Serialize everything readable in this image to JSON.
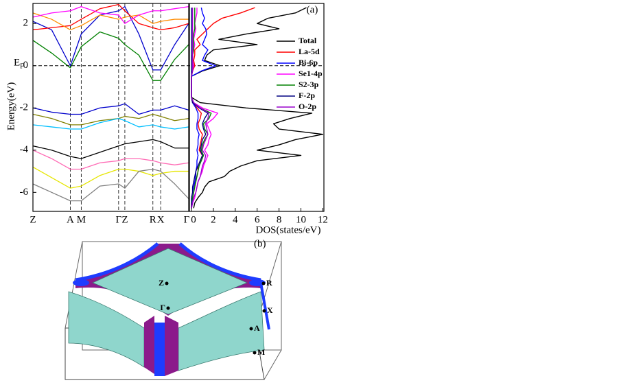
{
  "chart_data": [
    {
      "type": "line",
      "ylabel": "Energy(eV)",
      "ylim": [
        -6.9,
        2.95
      ],
      "yticks": [
        -6,
        -4,
        -2,
        0,
        2
      ],
      "fermi_label": {
        "main": "E",
        "sub": "F"
      },
      "hline": 0,
      "x": [
        0,
        0.12,
        0.24,
        0.31,
        0.43,
        0.55,
        0.59,
        0.68,
        0.77,
        0.82,
        0.91,
        1.0
      ],
      "xlim": [
        0,
        1
      ],
      "xticks": [
        {
          "value": 0,
          "label": "Z"
        },
        {
          "value": 0.24,
          "label": "A"
        },
        {
          "value": 0.31,
          "label": "M"
        },
        {
          "value": 0.55,
          "label": "Γ"
        },
        {
          "value": 0.59,
          "label": "Z"
        },
        {
          "value": 0.77,
          "label": "R"
        },
        {
          "value": 0.82,
          "label": "X"
        },
        {
          "value": 1.0,
          "label": "Γ"
        }
      ],
      "series": [
        {
          "color": "#008000",
          "values": [
            1.2,
            0.6,
            -0.1,
            0.9,
            1.6,
            1.3,
            1.0,
            0.5,
            -0.7,
            -0.7,
            0.3,
            1.0
          ]
        },
        {
          "color": "#0000cc",
          "values": [
            2.1,
            1.7,
            0.0,
            1.5,
            2.4,
            2.6,
            2.8,
            1.5,
            -0.2,
            -0.2,
            1.0,
            2.0
          ]
        },
        {
          "color": "#ff0000",
          "values": [
            1.7,
            1.8,
            1.9,
            2.2,
            2.7,
            2.9,
            2.6,
            2.0,
            1.8,
            1.7,
            1.8,
            2.0
          ]
        },
        {
          "color": "#ff8c00",
          "values": [
            2.5,
            2.2,
            1.7,
            1.9,
            2.4,
            2.2,
            2.3,
            2.4,
            2.0,
            2.1,
            2.2,
            2.2
          ]
        },
        {
          "color": "#ff00ff",
          "values": [
            2.3,
            2.5,
            2.6,
            2.8,
            2.5,
            2.4,
            2.0,
            2.4,
            2.6,
            2.6,
            2.7,
            2.8
          ]
        },
        {
          "color": "#0000cc",
          "values": [
            -2.0,
            -2.2,
            -2.3,
            -2.3,
            -2.0,
            -1.9,
            -1.8,
            -2.3,
            -2.1,
            -2.1,
            -1.9,
            -2.1
          ]
        },
        {
          "color": "#808000",
          "values": [
            -2.3,
            -2.5,
            -2.8,
            -2.8,
            -2.6,
            -2.5,
            -2.4,
            -2.5,
            -2.3,
            -2.4,
            -2.6,
            -2.5
          ]
        },
        {
          "color": "#00bfff",
          "values": [
            -2.8,
            -2.9,
            -3.0,
            -3.0,
            -2.7,
            -2.5,
            -2.6,
            -2.9,
            -2.8,
            -2.9,
            -3.0,
            -2.9
          ]
        },
        {
          "color": "#000000",
          "values": [
            -3.8,
            -4.0,
            -4.3,
            -4.4,
            -4.1,
            -3.8,
            -3.7,
            -3.6,
            -3.5,
            -3.6,
            -3.9,
            -3.9
          ]
        },
        {
          "color": "#ff69b4",
          "values": [
            -4.0,
            -4.4,
            -4.9,
            -4.9,
            -4.6,
            -4.5,
            -4.4,
            -4.4,
            -4.5,
            -4.6,
            -4.7,
            -4.6
          ]
        },
        {
          "color": "#e6e600",
          "values": [
            -4.8,
            -5.3,
            -5.8,
            -5.7,
            -5.2,
            -4.9,
            -4.9,
            -5.0,
            -5.2,
            -5.1,
            -5.0,
            -5.0
          ]
        },
        {
          "color": "#808080",
          "values": [
            -5.6,
            -6.0,
            -6.4,
            -6.4,
            -5.7,
            -5.6,
            -5.8,
            -5.0,
            -4.9,
            -5.0,
            -5.6,
            -6.3
          ]
        }
      ]
    },
    {
      "type": "line",
      "orientation": "horizontal",
      "panel_label": "(a)",
      "xlabel": "DOS(states/eV)",
      "xlim": [
        0,
        12.1
      ],
      "xticks": [
        0,
        2,
        4,
        6,
        8,
        10,
        12
      ],
      "ylim": [
        -6.9,
        2.95
      ],
      "legend": "upper right",
      "y": [
        -6.75,
        -6.5,
        -6.25,
        -6.0,
        -5.75,
        -5.5,
        -5.25,
        -5.0,
        -4.75,
        -4.5,
        -4.25,
        -4.0,
        -3.75,
        -3.5,
        -3.25,
        -3.0,
        -2.75,
        -2.5,
        -2.25,
        -2.0,
        -1.75,
        -1.5,
        -1.25,
        -1.0,
        -0.75,
        -0.5,
        -0.25,
        0,
        0.25,
        0.5,
        0.75,
        1.0,
        1.25,
        1.5,
        1.75,
        2.0,
        2.25,
        2.5,
        2.75
      ],
      "series": [
        {
          "name": "Total",
          "color": "#000000",
          "values": [
            0.2,
            0.3,
            0.6,
            1.0,
            1.2,
            1.6,
            3.0,
            3.5,
            4.5,
            6.0,
            10.0,
            6.0,
            8.0,
            9.5,
            12.0,
            8.0,
            7.5,
            9.0,
            11.0,
            5.0,
            0.8,
            0,
            0,
            0,
            0,
            0,
            1.0,
            2.6,
            1.2,
            1.4,
            2.0,
            6.0,
            2.5,
            5.0,
            8.0,
            6.0,
            7.0,
            9.5,
            10.5
          ]
        },
        {
          "name": "La-5d",
          "color": "#ff0000",
          "values": [
            0,
            0,
            0.1,
            0.2,
            0.3,
            0.3,
            0.5,
            0.6,
            0.6,
            0.8,
            1.0,
            0.7,
            0.8,
            0.9,
            1.0,
            0.7,
            0.6,
            0.8,
            0.9,
            0.5,
            0.1,
            0,
            0,
            0,
            0,
            0,
            0.1,
            0.3,
            0.2,
            0.3,
            0.3,
            0.8,
            0.5,
            1.0,
            1.5,
            2.0,
            2.8,
            4.5,
            5.8
          ]
        },
        {
          "name": "Bi-6p",
          "color": "#0000ff",
          "values": [
            0,
            0.1,
            0.1,
            0.2,
            0.2,
            0.3,
            0.4,
            0.4,
            0.5,
            0.5,
            0.6,
            0.5,
            0.6,
            0.6,
            0.7,
            0.5,
            0.5,
            0.6,
            0.6,
            0.4,
            0.1,
            0,
            0,
            0,
            0,
            0,
            0.9,
            2.2,
            1.0,
            1.2,
            1.5,
            1.0,
            1.2,
            1.4,
            1.3,
            1.0,
            1.2,
            1.0,
            0.9
          ]
        },
        {
          "name": "Se1-4p",
          "color": "#ff00ff",
          "values": [
            0,
            0.1,
            0.3,
            0.4,
            0.5,
            0.6,
            0.8,
            1.0,
            1.1,
            1.3,
            1.5,
            1.2,
            1.5,
            1.6,
            1.8,
            1.6,
            1.4,
            2.0,
            2.4,
            1.0,
            0.2,
            0,
            0,
            0,
            0,
            0,
            0.1,
            0.2,
            0.1,
            0.1,
            0.2,
            0.3,
            0.2,
            0.3,
            0.4,
            0.3,
            0.4,
            0.5,
            0.5
          ]
        },
        {
          "name": "S2-3p",
          "color": "#008000",
          "values": [
            0,
            0,
            0.1,
            0.2,
            0.3,
            0.4,
            0.5,
            0.6,
            0.7,
            0.9,
            1.1,
            0.9,
            1.0,
            1.2,
            1.5,
            1.2,
            1.1,
            1.6,
            1.8,
            0.8,
            0.2,
            0,
            0,
            0,
            0,
            0,
            0.1,
            0.1,
            0.1,
            0.1,
            0.2,
            0.2,
            0.2,
            0.2,
            0.3,
            0.3,
            0.3,
            0.3,
            0.3
          ]
        },
        {
          "name": "F-2p",
          "color": "#000080",
          "values": [
            0,
            0,
            0,
            0.1,
            0.1,
            0.2,
            0.3,
            0.4,
            0.6,
            0.8,
            1.0,
            0.8,
            0.9,
            1.0,
            1.3,
            1.1,
            1.0,
            1.2,
            1.5,
            0.7,
            0.1,
            0,
            0,
            0,
            0,
            0,
            0,
            0,
            0,
            0,
            0,
            0,
            0,
            0,
            0,
            0,
            0,
            0,
            0
          ]
        },
        {
          "name": "O-2p",
          "color": "#9900cc",
          "values": [
            0,
            0.1,
            0.2,
            0.4,
            0.5,
            0.6,
            0.8,
            0.9,
            1.0,
            1.2,
            1.3,
            1.0,
            1.1,
            1.3,
            1.5,
            1.4,
            1.3,
            1.5,
            1.6,
            0.8,
            0.2,
            0,
            0,
            0,
            0,
            0,
            0.1,
            0.1,
            0.1,
            0.1,
            0.1,
            0.1,
            0.1,
            0.1,
            0.1,
            0.1,
            0.1,
            0.1,
            0.1
          ]
        }
      ]
    }
  ],
  "fermi_surface": {
    "panel_label": "(b)",
    "points": [
      "Z",
      "Γ",
      "R",
      "X",
      "A",
      "M"
    ]
  }
}
